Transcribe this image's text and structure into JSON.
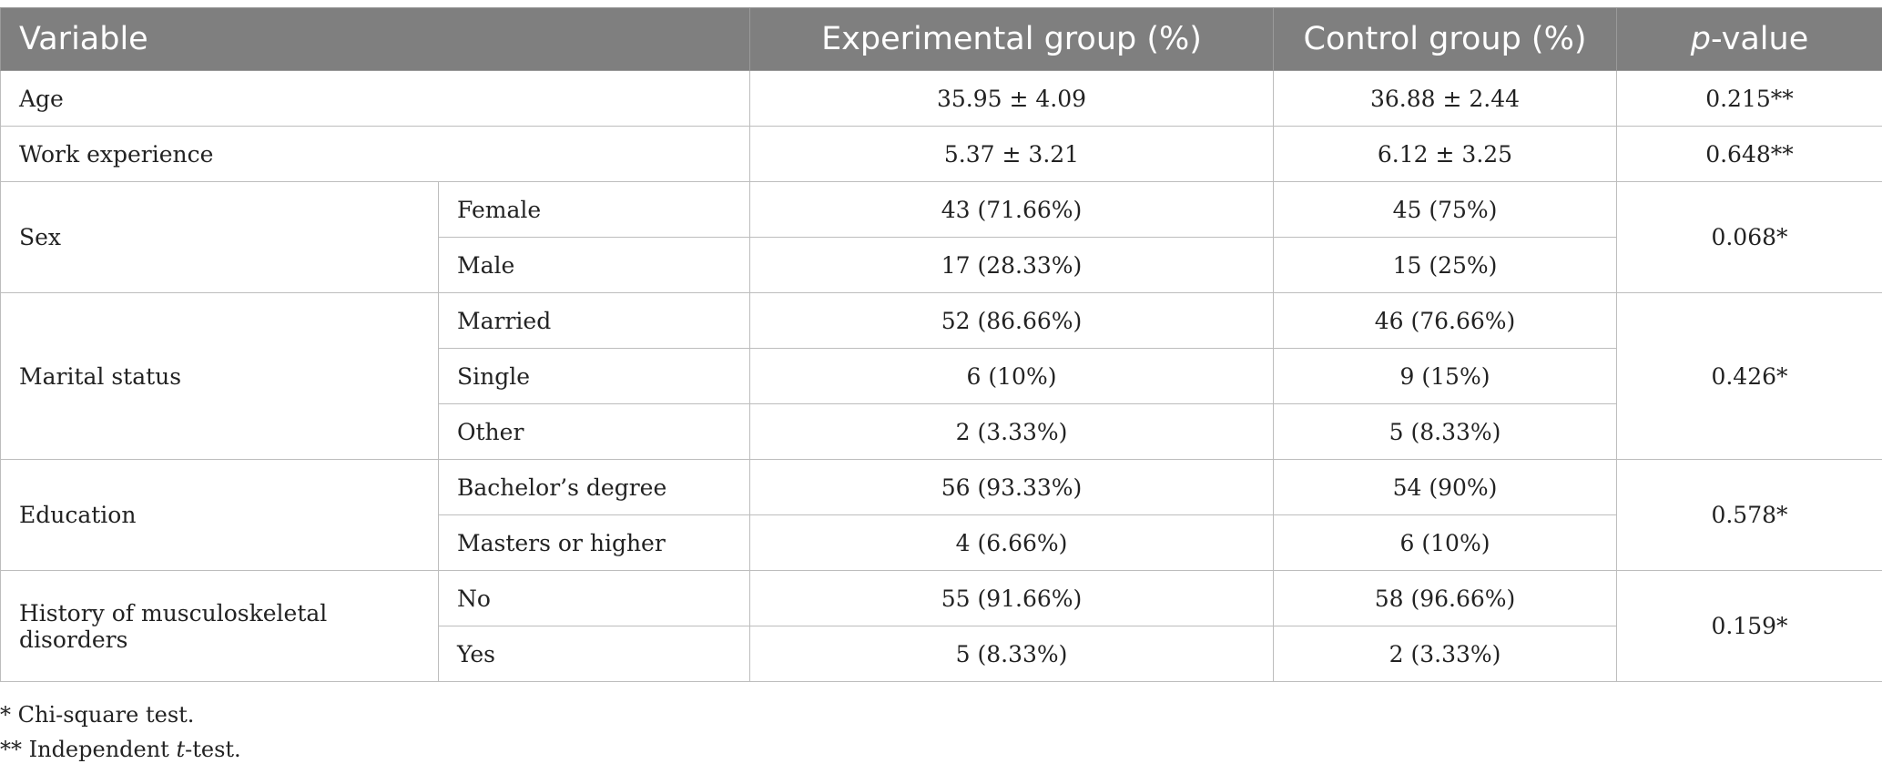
{
  "table": {
    "headers": {
      "variable": "Variable",
      "experimental": "Experimental group (%)",
      "control": "Control group (%)",
      "p_italic": "p",
      "p_rest": "-value"
    },
    "rows": {
      "age": {
        "label": "Age",
        "experimental": "35.95 ± 4.09",
        "control": "36.88 ± 2.44",
        "p": "0.215**"
      },
      "work": {
        "label": "Work experience",
        "experimental": "5.37 ± 3.21",
        "control": "6.12 ± 3.25",
        "p": "0.648**"
      },
      "sex": {
        "label": "Sex",
        "p": "0.068*",
        "sub": [
          {
            "label": "Female",
            "experimental": "43 (71.66%)",
            "control": "45 (75%)"
          },
          {
            "label": "Male",
            "experimental": "17 (28.33%)",
            "control": "15 (25%)"
          }
        ]
      },
      "marital": {
        "label": "Marital status",
        "p": "0.426*",
        "sub": [
          {
            "label": "Married",
            "experimental": "52 (86.66%)",
            "control": "46 (76.66%)"
          },
          {
            "label": "Single",
            "experimental": "6 (10%)",
            "control": "9 (15%)"
          },
          {
            "label": "Other",
            "experimental": "2 (3.33%)",
            "control": "5 (8.33%)"
          }
        ]
      },
      "education": {
        "label": "Education",
        "p": "0.578*",
        "sub": [
          {
            "label": "Bachelor’s degree",
            "experimental": "56 (93.33%)",
            "control": "54 (90%)"
          },
          {
            "label": "Masters or higher",
            "experimental": "4 (6.66%)",
            "control": "6 (10%)"
          }
        ]
      },
      "history": {
        "label": "History of musculoskeletal disorders",
        "p": "0.159*",
        "sub": [
          {
            "label": "No",
            "experimental": "55 (91.66%)",
            "control": "58 (96.66%)"
          },
          {
            "label": "Yes",
            "experimental": "5 (8.33%)",
            "control": "2 (3.33%)"
          }
        ]
      }
    }
  },
  "footnotes": {
    "chi": "* Chi-square test.",
    "ttest_prefix": "** Independent ",
    "ttest_italic": "t",
    "ttest_suffix": "-test."
  }
}
